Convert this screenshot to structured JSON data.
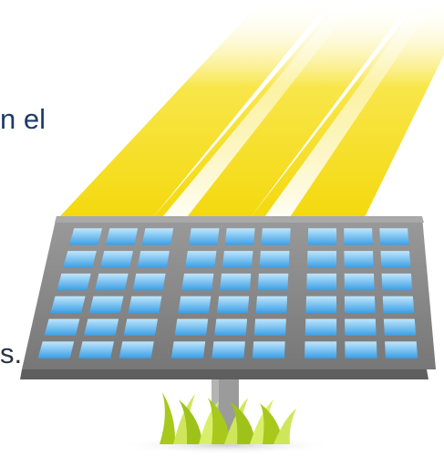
{
  "text_fragments": [
    {
      "id": "frag-1",
      "text": "n el"
    },
    {
      "id": "frag-2",
      "text": "s."
    }
  ],
  "illustration": {
    "subject": "solar-panel-with-sun-rays-and-grass",
    "colors": {
      "ray_yellow": "#f6de16",
      "ray_highlight": "#fff7a8",
      "panel_frame": "#8a8a8a",
      "panel_frame_dark": "#6d6d6d",
      "panel_edge_bottom": "#5a5a5a",
      "cell_top": "#b9e4fb",
      "cell_bottom": "#3fa6ea",
      "pole": "#9b9b9b",
      "grass_dark": "#9ec21a",
      "grass_light": "#d9ef6a",
      "shadow": "#d8d8d8"
    },
    "cell_grid": {
      "rows": 6,
      "columns": 9,
      "column_groups": 3
    }
  }
}
